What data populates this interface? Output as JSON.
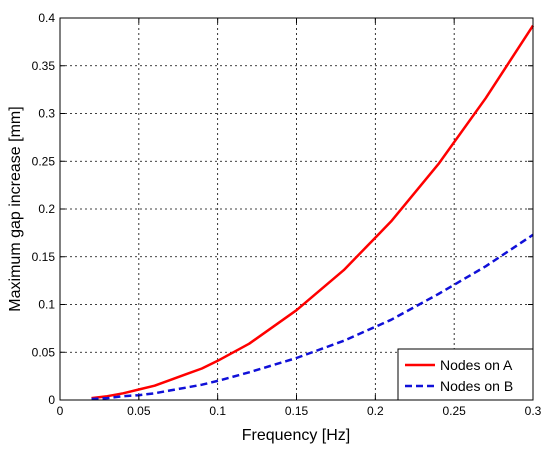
{
  "chart_data": {
    "type": "line",
    "xlabel": "Frequency [Hz]",
    "ylabel": "Maximum gap increase [mm]",
    "xlim": [
      0,
      0.3
    ],
    "ylim": [
      0,
      0.4
    ],
    "xticks": [
      "0",
      "0.05",
      "0.1",
      "0.15",
      "0.2",
      "0.25",
      "0.3"
    ],
    "yticks": [
      "0",
      "0.05",
      "0.1",
      "0.15",
      "0.2",
      "0.25",
      "0.3",
      "0.35",
      "0.4"
    ],
    "grid": true,
    "legend_position": "bottom-right",
    "series": [
      {
        "name": "Nodes on A",
        "color": "#ff0000",
        "style": "solid",
        "x": [
          0.02,
          0.03,
          0.04,
          0.05,
          0.06,
          0.07,
          0.08,
          0.09,
          0.1,
          0.12,
          0.15,
          0.18,
          0.21,
          0.24,
          0.27,
          0.3
        ],
        "y": [
          0.002,
          0.004,
          0.007,
          0.011,
          0.015,
          0.021,
          0.027,
          0.033,
          0.041,
          0.059,
          0.094,
          0.136,
          0.187,
          0.247,
          0.316,
          0.392
        ]
      },
      {
        "name": "Nodes on B",
        "color": "#1010d8",
        "style": "dashed",
        "x": [
          0.02,
          0.03,
          0.04,
          0.05,
          0.06,
          0.07,
          0.08,
          0.09,
          0.1,
          0.12,
          0.15,
          0.18,
          0.21,
          0.24,
          0.27,
          0.3
        ],
        "y": [
          0.001,
          0.002,
          0.004,
          0.005,
          0.007,
          0.01,
          0.013,
          0.016,
          0.02,
          0.029,
          0.044,
          0.062,
          0.084,
          0.111,
          0.14,
          0.173
        ]
      }
    ]
  }
}
